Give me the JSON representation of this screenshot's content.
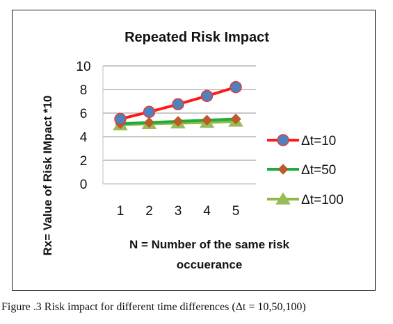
{
  "chart_data": {
    "type": "line",
    "title": "Repeated Risk Impact",
    "xlabel_line1": "N = Number of the same risk",
    "xlabel_line2": "occuerance",
    "ylabel": "Rx= Value of Risk IMpact *10",
    "x": [
      1,
      2,
      3,
      4,
      5
    ],
    "ylim": [
      0,
      10
    ],
    "yticks": [
      0,
      2,
      4,
      6,
      8,
      10
    ],
    "grid": true,
    "legend_position": "right",
    "series": [
      {
        "name": "Δt=10",
        "values": [
          5.5,
          6.1,
          6.75,
          7.45,
          8.2
        ],
        "color": "#ff1a1a",
        "marker": "circle",
        "marker_color": "#4f81bd"
      },
      {
        "name": "Δt=50",
        "values": [
          5.1,
          5.2,
          5.3,
          5.4,
          5.5
        ],
        "color": "#1aae3c",
        "marker": "diamond",
        "marker_color": "#b85c2a"
      },
      {
        "name": "Δt=100",
        "values": [
          5.0,
          5.1,
          5.15,
          5.2,
          5.3
        ],
        "color": "#8fb848",
        "marker": "triangle",
        "marker_color": "#9bbb59"
      }
    ]
  },
  "caption": "Figure .3 Risk impact for different time differences (Δt = 10,50,100)"
}
